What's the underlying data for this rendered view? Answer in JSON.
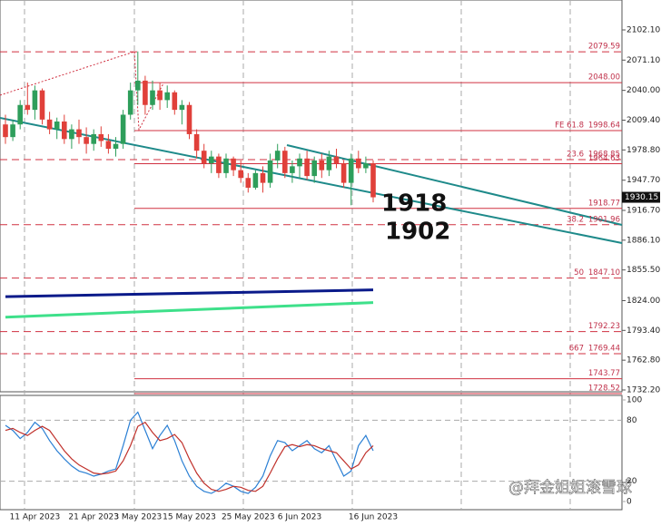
{
  "chart_data": {
    "type": "candlestick",
    "ylim": [
      1732.2,
      2102.1
    ],
    "yticks": [
      {
        "value": 2102.1,
        "label": "2102.10"
      },
      {
        "value": 2071.1,
        "label": "2071.10"
      },
      {
        "value": 2040,
        "label": "2040.00"
      },
      {
        "value": 2009.4,
        "label": "2009.40"
      },
      {
        "value": 1978.8,
        "label": "1978.80"
      },
      {
        "value": 1947.7,
        "label": "1947.70"
      },
      {
        "value": 1916.7,
        "label": "1916.70"
      },
      {
        "value": 1886.1,
        "label": "1886.10"
      },
      {
        "value": 1855.5,
        "label": "1855.50"
      },
      {
        "value": 1824,
        "label": "1824.00"
      },
      {
        "value": 1793.4,
        "label": "1793.40"
      },
      {
        "value": 1762.8,
        "label": "1762.80"
      },
      {
        "value": 1732.2,
        "label": "1732.20"
      }
    ],
    "categories": [
      null,
      null,
      null,
      null,
      "11 Apr 2023",
      null,
      null,
      null,
      null,
      null,
      null,
      null,
      "21 Apr 2023",
      null,
      null,
      null,
      null,
      null,
      "3 May 2023",
      null,
      null,
      null,
      null,
      null,
      null,
      "15 May 2023",
      null,
      null,
      null,
      null,
      null,
      null,
      null,
      "25 May 2023",
      null,
      null,
      null,
      null,
      null,
      null,
      "6 Jun 2023",
      null,
      null,
      null,
      null,
      null,
      null,
      null,
      null,
      null,
      "16 Jun 2023"
    ],
    "open": [
      2005,
      1992,
      2005,
      2025,
      2020,
      2040,
      2010,
      2000,
      2008,
      1990,
      2000,
      1992,
      1985,
      1995,
      1988,
      1980,
      1985,
      2015,
      2040,
      2050,
      2025,
      2040,
      2030,
      2038,
      2020,
      2025,
      1995,
      1978,
      1965,
      1972,
      1955,
      1970,
      1958,
      1950,
      1940,
      1955,
      1945,
      1968,
      1978,
      1955,
      1962,
      1970,
      1952,
      1968,
      1958,
      1972,
      1965,
      1945,
      1970,
      1960,
      1965
    ],
    "high": [
      2015,
      2010,
      2030,
      2048,
      2045,
      2042,
      2018,
      2012,
      2015,
      2005,
      2010,
      2002,
      2000,
      2003,
      1995,
      1992,
      2020,
      2048,
      2080,
      2055,
      2050,
      2048,
      2045,
      2040,
      2030,
      2028,
      2000,
      1985,
      1978,
      1975,
      1975,
      1972,
      1968,
      1955,
      1958,
      1962,
      1975,
      1985,
      1982,
      1968,
      1975,
      1978,
      1972,
      1975,
      1978,
      1980,
      1968,
      1975,
      1978,
      1972,
      1968
    ],
    "low": [
      1985,
      1988,
      2000,
      2015,
      2010,
      2005,
      1995,
      1990,
      1985,
      1980,
      1985,
      1975,
      1978,
      1982,
      1975,
      1972,
      1980,
      2010,
      2025,
      2015,
      2020,
      2020,
      2022,
      2015,
      2005,
      1990,
      1970,
      1960,
      1955,
      1950,
      1950,
      1952,
      1945,
      1935,
      1938,
      1935,
      1940,
      1960,
      1950,
      1945,
      1950,
      1948,
      1945,
      1950,
      1952,
      1960,
      1940,
      1922,
      1955,
      1955,
      1925
    ],
    "close": [
      1992,
      2005,
      2025,
      2020,
      2040,
      2010,
      2000,
      2008,
      1990,
      2000,
      1992,
      1985,
      1995,
      1988,
      1980,
      1985,
      2015,
      2040,
      2050,
      2025,
      2040,
      2030,
      2038,
      2020,
      2025,
      1995,
      1978,
      1965,
      1972,
      1955,
      1970,
      1958,
      1950,
      1940,
      1955,
      1945,
      1968,
      1978,
      1955,
      1962,
      1970,
      1952,
      1968,
      1958,
      1972,
      1965,
      1945,
      1970,
      1960,
      1965,
      1930.15
    ],
    "up_color": "#2e9e5b",
    "down_color": "#e0403a",
    "levels": [
      {
        "value": 2079.59,
        "label": "2079.59",
        "style": "dashed"
      },
      {
        "value": 2048,
        "label": "2048.00",
        "style": "solid"
      },
      {
        "value": 1998.64,
        "label": "1998.64",
        "prefix": "FE 61.8",
        "style": "solid"
      },
      {
        "value": 1968.85,
        "label": "1968.85",
        "prefix": "23.6",
        "style": "dashed"
      },
      {
        "value": 1964.63,
        "label": "1964.63",
        "style": "solid"
      },
      {
        "value": 1918.77,
        "label": "1918.77",
        "style": "solid"
      },
      {
        "value": 1901.96,
        "label": "1901.96",
        "prefix": "38.2",
        "style": "dashed"
      },
      {
        "value": 1847.1,
        "label": "1847.10",
        "prefix": "50",
        "style": "dashed"
      },
      {
        "value": 1792.23,
        "label": "1792.23",
        "style": "dashed"
      },
      {
        "value": 1769.44,
        "label": "1769.44",
        "prefix": "667",
        "style": "dashed"
      },
      {
        "value": 1743.77,
        "label": "1743.77",
        "style": "solid"
      },
      {
        "value": 1728.52,
        "label": "1728.52",
        "style": "solid"
      }
    ],
    "current_price": {
      "value": 1930.15,
      "label": "1930.15"
    },
    "ma_lines": [
      {
        "color": "#0a1a8a",
        "x": [
          0,
          50
        ],
        "values": [
          1828,
          1835
        ]
      },
      {
        "color": "#3ee08a",
        "x": [
          0,
          50
        ],
        "values": [
          1807,
          1822
        ]
      }
    ],
    "annotations": [
      "1918",
      "1902"
    ],
    "stochastic": {
      "ylim": [
        0,
        100
      ],
      "yticks": [
        100,
        80,
        20,
        0
      ],
      "series": [
        {
          "color": "#2a7fd4",
          "values": [
            75,
            70,
            62,
            68,
            78,
            72,
            60,
            50,
            42,
            35,
            30,
            28,
            25,
            27,
            30,
            32,
            55,
            80,
            88,
            70,
            52,
            65,
            75,
            60,
            40,
            25,
            15,
            10,
            8,
            12,
            18,
            15,
            10,
            8,
            14,
            25,
            45,
            60,
            58,
            50,
            55,
            60,
            52,
            48,
            55,
            40,
            25,
            30,
            55,
            65,
            50
          ]
        },
        {
          "color": "#c0302a",
          "values": [
            70,
            72,
            68,
            65,
            70,
            74,
            70,
            60,
            50,
            42,
            36,
            32,
            28,
            27,
            28,
            30,
            40,
            55,
            74,
            78,
            68,
            60,
            62,
            66,
            58,
            42,
            28,
            18,
            12,
            10,
            12,
            15,
            14,
            11,
            10,
            15,
            28,
            42,
            54,
            56,
            54,
            56,
            55,
            52,
            50,
            48,
            40,
            32,
            36,
            48,
            55
          ]
        }
      ]
    },
    "watermark": "@拜金姐姐滚雪球"
  }
}
